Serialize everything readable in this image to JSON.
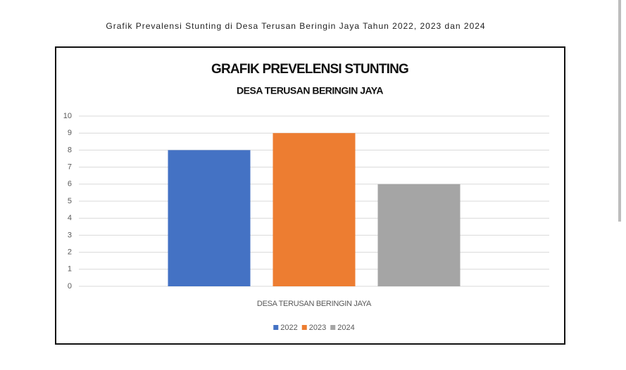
{
  "caption": "Grafik Prevalensi Stunting di Desa Terusan Beringin Jaya Tahun 2022, 2023 dan 2024",
  "chart_data": {
    "type": "bar",
    "title": "GRAFIK PREVELENSI STUNTING",
    "subtitle": "DESA TERUSAN BERINGIN JAYA",
    "categories": [
      "DESA TERUSAN BERINGIN JAYA"
    ],
    "series": [
      {
        "name": "2022",
        "color": "#4472c4",
        "values": [
          8
        ]
      },
      {
        "name": "2023",
        "color": "#ed7d31",
        "values": [
          9
        ]
      },
      {
        "name": "2024",
        "color": "#a5a5a5",
        "values": [
          6
        ]
      }
    ],
    "ylim": [
      0,
      10
    ],
    "yticks": [
      0,
      1,
      2,
      3,
      4,
      5,
      6,
      7,
      8,
      9,
      10
    ],
    "grid": true,
    "legend": "bottom"
  }
}
